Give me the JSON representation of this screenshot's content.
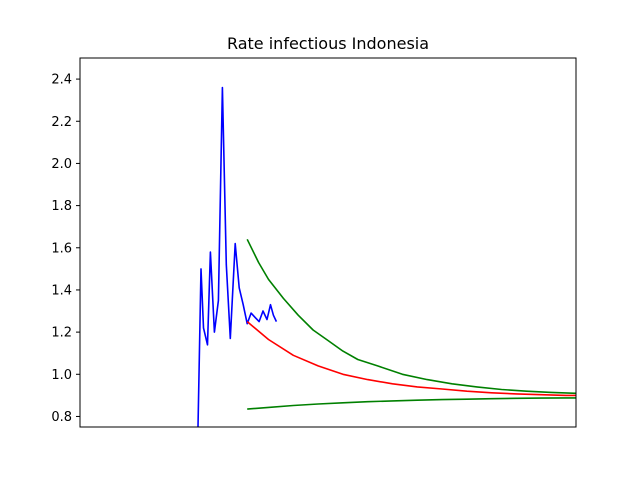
{
  "chart_data": {
    "type": "line",
    "title": "Rate infectious Indonesia",
    "xlabel": "",
    "ylabel": "",
    "xlim": [
      0,
      100
    ],
    "ylim": [
      0.75,
      2.5
    ],
    "yticks": [
      "0.8",
      "1.0",
      "1.2",
      "1.4",
      "1.6",
      "1.8",
      "2.0",
      "2.2",
      "2.4"
    ],
    "ytick_values": [
      0.8,
      1.0,
      1.2,
      1.4,
      1.6,
      1.8,
      2.0,
      2.2,
      2.4
    ],
    "xticks_visible": false,
    "grid": false,
    "legend": "none",
    "series": [
      {
        "color": "#0000ff",
        "x": [
          23.8,
          24.4,
          24.9,
          25.7,
          26.3,
          27.1,
          27.9,
          28.7,
          29.5,
          30.3,
          31.3,
          32.1,
          32.9,
          33.7,
          34.5,
          35.3,
          36.1,
          36.9,
          37.7,
          38.4,
          39.0,
          39.6
        ],
        "y": [
          0.75,
          1.5,
          1.22,
          1.14,
          1.58,
          1.2,
          1.35,
          2.36,
          1.52,
          1.17,
          1.62,
          1.41,
          1.33,
          1.24,
          1.29,
          1.27,
          1.25,
          1.3,
          1.26,
          1.33,
          1.28,
          1.25
        ]
      },
      {
        "color": "#ff0000",
        "x": [
          33.7,
          38,
          43,
          48,
          53,
          58,
          63,
          68,
          73,
          78,
          83,
          88,
          93,
          98,
          100
        ],
        "y": [
          1.25,
          1.165,
          1.09,
          1.04,
          1.0,
          0.975,
          0.955,
          0.94,
          0.93,
          0.92,
          0.912,
          0.907,
          0.903,
          0.9,
          0.9
        ]
      },
      {
        "color": "#008000",
        "x": [
          33.7,
          36,
          38,
          41,
          44,
          47,
          50,
          53,
          56,
          60,
          65,
          70,
          75,
          80,
          85,
          90,
          95,
          100
        ],
        "y": [
          1.64,
          1.53,
          1.45,
          1.36,
          1.28,
          1.21,
          1.16,
          1.11,
          1.07,
          1.04,
          1.0,
          0.975,
          0.955,
          0.94,
          0.928,
          0.92,
          0.914,
          0.91
        ]
      },
      {
        "color": "#008000",
        "x": [
          33.7,
          38,
          43,
          48,
          53,
          58,
          63,
          68,
          73,
          78,
          83,
          88,
          93,
          98,
          100
        ],
        "y": [
          0.835,
          0.843,
          0.852,
          0.859,
          0.865,
          0.87,
          0.874,
          0.877,
          0.88,
          0.882,
          0.884,
          0.886,
          0.887,
          0.888,
          0.888
        ]
      }
    ]
  }
}
